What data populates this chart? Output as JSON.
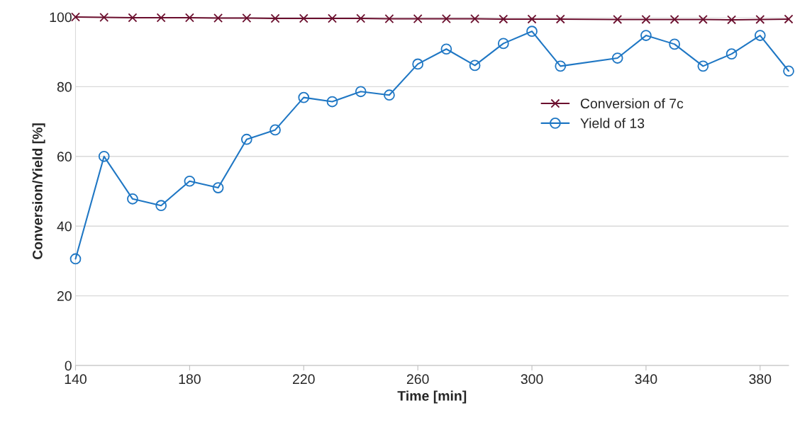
{
  "chart_data": {
    "type": "line",
    "xlabel": "Time [min]",
    "ylabel": "Conversion/Yield [%]",
    "xlim": [
      140,
      390
    ],
    "xticks": [
      140,
      180,
      220,
      260,
      300,
      340,
      380
    ],
    "ylim": [
      0,
      100
    ],
    "yticks": [
      0,
      20,
      40,
      60,
      80,
      100
    ],
    "grid": "y",
    "legend": "right",
    "series": [
      {
        "name": "Conversion of 7c",
        "color": "#6b0f2e",
        "marker": "cross",
        "x": [
          140,
          150,
          160,
          170,
          180,
          190,
          200,
          210,
          220,
          230,
          240,
          250,
          260,
          270,
          280,
          290,
          300,
          310,
          330,
          340,
          350,
          360,
          370,
          380,
          390
        ],
        "values": [
          100,
          99.9,
          99.8,
          99.8,
          99.8,
          99.7,
          99.7,
          99.6,
          99.6,
          99.6,
          99.6,
          99.5,
          99.5,
          99.5,
          99.5,
          99.4,
          99.4,
          99.4,
          99.3,
          99.3,
          99.3,
          99.3,
          99.2,
          99.3,
          99.4
        ]
      },
      {
        "name": "Yield of 13",
        "color": "#1f77c4",
        "marker": "circle",
        "x": [
          140,
          150,
          160,
          170,
          180,
          190,
          200,
          210,
          220,
          230,
          240,
          250,
          260,
          270,
          280,
          290,
          300,
          310,
          330,
          340,
          350,
          360,
          370,
          380,
          390
        ],
        "values": [
          30.6,
          60.0,
          47.8,
          45.9,
          52.9,
          51.0,
          64.9,
          67.6,
          76.9,
          75.7,
          78.6,
          77.6,
          86.5,
          90.8,
          86.1,
          92.4,
          95.9,
          85.9,
          88.2,
          94.7,
          92.2,
          85.9,
          89.4,
          94.7,
          84.5
        ]
      }
    ]
  }
}
